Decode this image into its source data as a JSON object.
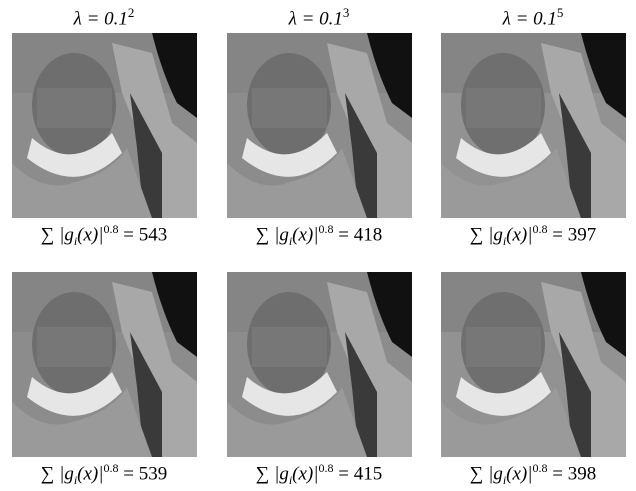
{
  "headers": [
    {
      "base": "λ = 0.1",
      "exponent": "2"
    },
    {
      "base": "λ = 0.1",
      "exponent": "3"
    },
    {
      "base": "λ = 0.1",
      "exponent": "5"
    }
  ],
  "rows": [
    [
      {
        "sum": "∑",
        "term": "|g",
        "sub": "i",
        "arg": "(x)|",
        "exp": "0.8",
        "eq": "=",
        "value": 543
      },
      {
        "sum": "∑",
        "term": "|g",
        "sub": "i",
        "arg": "(x)|",
        "exp": "0.8",
        "eq": "=",
        "value": 418
      },
      {
        "sum": "∑",
        "term": "|g",
        "sub": "i",
        "arg": "(x)|",
        "exp": "0.8",
        "eq": "=",
        "value": 397
      }
    ],
    [
      {
        "sum": "∑",
        "term": "|g",
        "sub": "i",
        "arg": "(x)|",
        "exp": "0.8",
        "eq": "=",
        "value": 539
      },
      {
        "sum": "∑",
        "term": "|g",
        "sub": "i",
        "arg": "(x)|",
        "exp": "0.8",
        "eq": "=",
        "value": 415
      },
      {
        "sum": "∑",
        "term": "|g",
        "sub": "i",
        "arg": "(x)|",
        "exp": "0.8",
        "eq": "=",
        "value": 398
      }
    ]
  ]
}
